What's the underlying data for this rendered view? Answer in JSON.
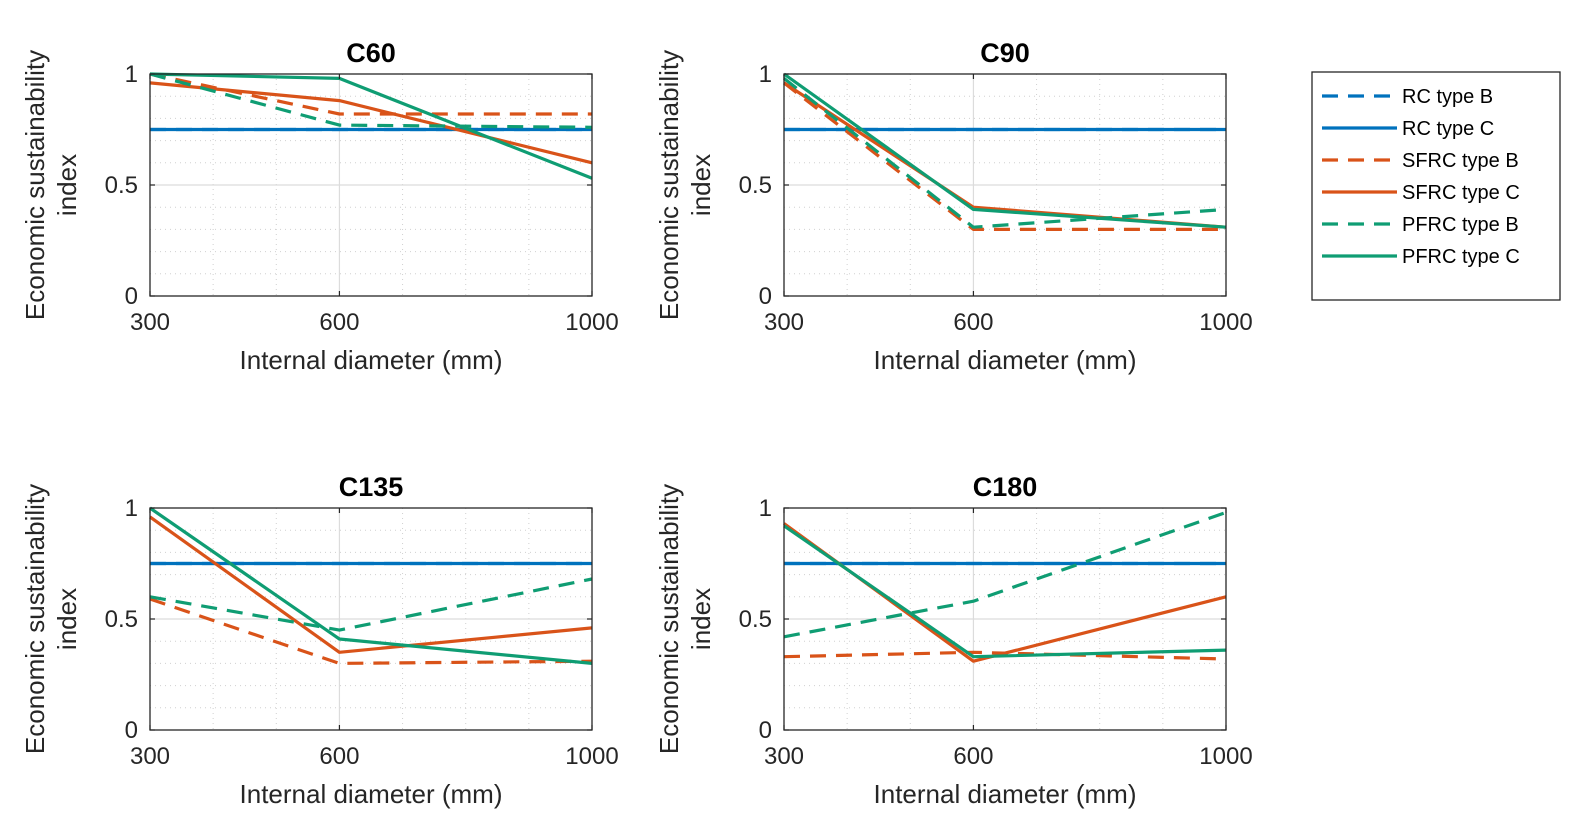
{
  "colors": {
    "RC": "#0072bd",
    "SFRC": "#d95319",
    "PFRC": "#0f9d73"
  },
  "legend": [
    {
      "label": "RC type B",
      "color": "#0072bd",
      "dash": true
    },
    {
      "label": "RC type C",
      "color": "#0072bd",
      "dash": false
    },
    {
      "label": "SFRC type B",
      "color": "#d95319",
      "dash": true
    },
    {
      "label": "SFRC type C",
      "color": "#d95319",
      "dash": false
    },
    {
      "label": "PFRC type B",
      "color": "#0f9d73",
      "dash": true
    },
    {
      "label": "PFRC type C",
      "color": "#0f9d73",
      "dash": false
    }
  ],
  "chart_data": [
    {
      "type": "line",
      "title": "C60",
      "xlabel": "Internal diameter (mm)",
      "ylabel": [
        "Economic sustainability",
        "index"
      ],
      "x": [
        300,
        600,
        1000
      ],
      "xticks": [
        "300",
        "600",
        "1000"
      ],
      "yticks": [
        "0",
        "0.5",
        "1"
      ],
      "xlim": [
        300,
        1000
      ],
      "ylim": [
        0,
        1
      ],
      "grid": true,
      "series": [
        {
          "name": "RC type B",
          "values": [
            0.75,
            0.75,
            0.75
          ]
        },
        {
          "name": "RC type C",
          "values": [
            0.75,
            0.75,
            0.75
          ]
        },
        {
          "name": "SFRC type B",
          "values": [
            1.0,
            0.82,
            0.82
          ]
        },
        {
          "name": "SFRC type C",
          "values": [
            0.96,
            0.88,
            0.6
          ]
        },
        {
          "name": "PFRC type B",
          "values": [
            1.0,
            0.77,
            0.76
          ]
        },
        {
          "name": "PFRC type C",
          "values": [
            1.0,
            0.98,
            0.53
          ]
        }
      ]
    },
    {
      "type": "line",
      "title": "C90",
      "xlabel": "Internal diameter (mm)",
      "ylabel": [
        "Economic sustainability",
        "index"
      ],
      "x": [
        300,
        600,
        1000
      ],
      "xticks": [
        "300",
        "600",
        "1000"
      ],
      "yticks": [
        "0",
        "0.5",
        "1"
      ],
      "xlim": [
        300,
        1000
      ],
      "ylim": [
        0,
        1
      ],
      "grid": true,
      "series": [
        {
          "name": "RC type B",
          "values": [
            0.75,
            0.75,
            0.75
          ]
        },
        {
          "name": "RC type C",
          "values": [
            0.75,
            0.75,
            0.75
          ]
        },
        {
          "name": "SFRC type B",
          "values": [
            0.96,
            0.3,
            0.3
          ]
        },
        {
          "name": "SFRC type C",
          "values": [
            0.96,
            0.4,
            0.31
          ]
        },
        {
          "name": "PFRC type B",
          "values": [
            0.98,
            0.31,
            0.39
          ]
        },
        {
          "name": "PFRC type C",
          "values": [
            1.0,
            0.39,
            0.31
          ]
        }
      ]
    },
    {
      "type": "line",
      "title": "C135",
      "xlabel": "Internal diameter (mm)",
      "ylabel": [
        "Economic sustainability",
        "index"
      ],
      "x": [
        300,
        600,
        1000
      ],
      "xticks": [
        "300",
        "600",
        "1000"
      ],
      "yticks": [
        "0",
        "0.5",
        "1"
      ],
      "xlim": [
        300,
        1000
      ],
      "ylim": [
        0,
        1
      ],
      "grid": true,
      "series": [
        {
          "name": "RC type B",
          "values": [
            0.75,
            0.75,
            0.75
          ]
        },
        {
          "name": "RC type C",
          "values": [
            0.75,
            0.75,
            0.75
          ]
        },
        {
          "name": "SFRC type B",
          "values": [
            0.59,
            0.3,
            0.31
          ]
        },
        {
          "name": "SFRC type C",
          "values": [
            0.96,
            0.35,
            0.46
          ]
        },
        {
          "name": "PFRC type B",
          "values": [
            0.6,
            0.45,
            0.68
          ]
        },
        {
          "name": "PFRC type C",
          "values": [
            1.0,
            0.41,
            0.3
          ]
        }
      ]
    },
    {
      "type": "line",
      "title": "C180",
      "xlabel": "Internal diameter (mm)",
      "ylabel": [
        "Economic sustainability",
        "index"
      ],
      "x": [
        300,
        600,
        1000
      ],
      "xticks": [
        "300",
        "600",
        "1000"
      ],
      "yticks": [
        "0",
        "0.5",
        "1"
      ],
      "xlim": [
        300,
        1000
      ],
      "ylim": [
        0,
        1
      ],
      "grid": true,
      "series": [
        {
          "name": "RC type B",
          "values": [
            0.75,
            0.75,
            0.75
          ]
        },
        {
          "name": "RC type C",
          "values": [
            0.75,
            0.75,
            0.75
          ]
        },
        {
          "name": "SFRC type B",
          "values": [
            0.33,
            0.35,
            0.32
          ]
        },
        {
          "name": "SFRC type C",
          "values": [
            0.93,
            0.31,
            0.6
          ]
        },
        {
          "name": "PFRC type B",
          "values": [
            0.42,
            0.58,
            0.98
          ]
        },
        {
          "name": "PFRC type C",
          "values": [
            0.92,
            0.33,
            0.36
          ]
        }
      ]
    }
  ]
}
